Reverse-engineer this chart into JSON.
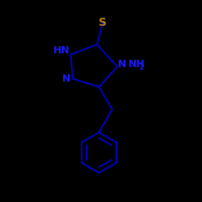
{
  "background_color": "#000000",
  "bond_color": "#0000cc",
  "S_color": "#b8860b",
  "text_color_blue": "#1a1aff",
  "S_label": "S",
  "NH_label": "HN",
  "N1_label": "N",
  "N4_label": "N",
  "NH2_label": "NH",
  "NH2_sub": "2",
  "figsize": [
    2.5,
    2.5
  ],
  "dpi": 100,
  "xlim": [
    0,
    10
  ],
  "ylim": [
    0,
    10
  ],
  "lw": 1.4,
  "font_size_label": 9,
  "font_size_S": 10,
  "font_size_sub": 6
}
